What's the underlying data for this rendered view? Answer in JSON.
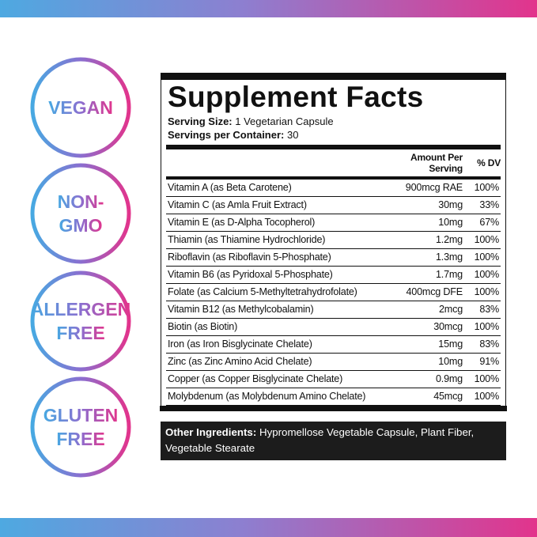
{
  "badges": [
    {
      "lines": [
        "VEGAN"
      ]
    },
    {
      "lines": [
        "NON-",
        "GMO"
      ]
    },
    {
      "lines": [
        "ALLERGEN",
        "FREE"
      ]
    },
    {
      "lines": [
        "GLUTEN",
        "FREE"
      ]
    }
  ],
  "facts": {
    "title": "Supplement Facts",
    "serving_size": {
      "label": "Serving Size:",
      "value": "1 Vegetarian Capsule"
    },
    "servings": {
      "label": "Servings per Container:",
      "value": "30"
    },
    "header": [
      "Amount Per Serving",
      "% DV"
    ],
    "rows": [
      [
        "Vitamin A (as Beta Carotene)",
        "900mcg RAE",
        "100%"
      ],
      [
        "Vitamin C (as Amla Fruit Extract)",
        "30mg",
        "33%"
      ],
      [
        "Vitamin E (as D-Alpha Tocopherol)",
        "10mg",
        "67%"
      ],
      [
        "Thiamin (as Thiamine Hydrochloride)",
        "1.2mg",
        "100%"
      ],
      [
        "Riboflavin (as Riboflavin 5-Phosphate)",
        "1.3mg",
        "100%"
      ],
      [
        "Vitamin B6 (as Pyridoxal 5-Phosphate)",
        "1.7mg",
        "100%"
      ],
      [
        "Folate (as Calcium 5-Methyltetrahydrofolate)",
        "400mcg DFE",
        "100%"
      ],
      [
        "Vitamin B12 (as Methylcobalamin)",
        "2mcg",
        "83%"
      ],
      [
        "Biotin (as Biotin)",
        "30mcg",
        "100%"
      ],
      [
        "Iron (as Iron Bisglycinate Chelate)",
        "15mg",
        "83%"
      ],
      [
        "Zinc (as Zinc Amino Acid Chelate)",
        "10mg",
        "91%"
      ],
      [
        "Copper (as Copper Bisglycinate Chelate)",
        "0.9mg",
        "100%"
      ],
      [
        "Molybdenum (as Molybdenum Amino Chelate)",
        "45mcg",
        "100%"
      ]
    ],
    "other_ingredients": {
      "label": "Other Ingredients:",
      "value": "Hypromellose Vegetable Capsule, Plant Fiber, Vegetable Stearate"
    }
  }
}
